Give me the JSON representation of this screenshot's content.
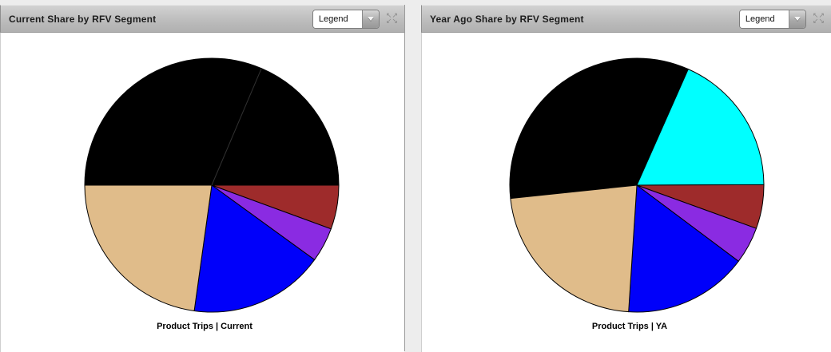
{
  "panels": [
    {
      "title": "Current Share by RFV Segment",
      "legend_dropdown": {
        "value": "Legend"
      },
      "expand_icon_rows": {
        "top": "↖↗",
        "bottom": "↙↘"
      }
    },
    {
      "title": "Year Ago Share by RFV Segment",
      "legend_dropdown": {
        "value": "Legend"
      },
      "expand_icon_rows": {
        "top": "↖↗",
        "bottom": "↙↘"
      }
    }
  ],
  "chart_data": [
    {
      "type": "pie",
      "title": "Product Trips | Current",
      "panel_title": "Current Share by RFV Segment",
      "start_angle_deg_clockwise_from_north": 270,
      "radius_px": 159,
      "slices": [
        {
          "color": "#000000",
          "share_pct": 31.4
        },
        {
          "color": "#000000",
          "share_pct": 18.6
        },
        {
          "color": "#9E2B2B",
          "share_pct": 5.6
        },
        {
          "color": "#8A2BE2",
          "share_pct": 4.4
        },
        {
          "color": "#0000FA",
          "share_pct": 17.2
        },
        {
          "color": "#E0BC8A",
          "share_pct": 22.8
        }
      ]
    },
    {
      "type": "pie",
      "title": "Product Trips | YA",
      "panel_title": "Year Ago Share by RFV Segment",
      "start_angle_deg_clockwise_from_north": 264,
      "radius_px": 159,
      "slices": [
        {
          "color": "#000000",
          "share_pct": 33.3
        },
        {
          "color": "#00FFFF",
          "share_pct": 18.3
        },
        {
          "color": "#9E2B2B",
          "share_pct": 5.6
        },
        {
          "color": "#8A2BE2",
          "share_pct": 4.7
        },
        {
          "color": "#0000FA",
          "share_pct": 15.8
        },
        {
          "color": "#E0BC8A",
          "share_pct": 22.3
        }
      ]
    }
  ]
}
